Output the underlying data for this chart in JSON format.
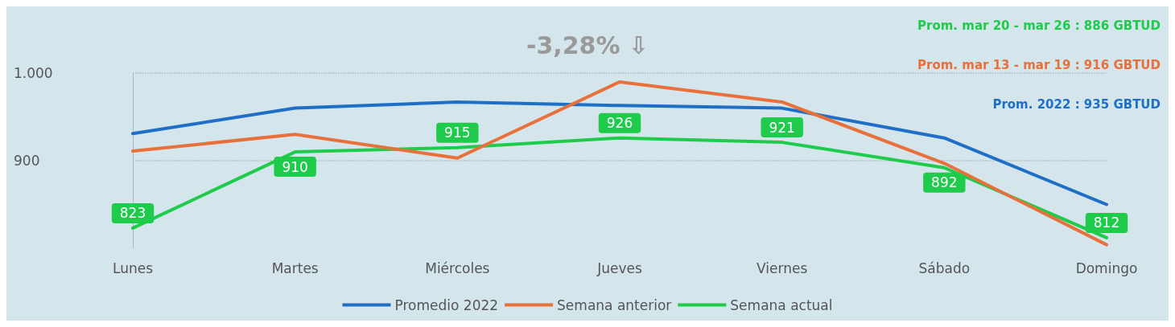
{
  "chart_data": {
    "type": "line",
    "title": "-3,28% ⇩",
    "categories": [
      "Lunes",
      "Martes",
      "Miércoles",
      "Jueves",
      "Viernes",
      "Sábado",
      "Domingo"
    ],
    "series": [
      {
        "name": "Promedio 2022",
        "color": "#1f6fc6",
        "values": [
          931,
          960,
          967,
          963,
          960,
          926,
          850
        ]
      },
      {
        "name": "Semana anterior",
        "color": "#e8703a",
        "values": [
          911,
          930,
          903,
          990,
          967,
          897,
          804
        ]
      },
      {
        "name": "Semana actual",
        "color": "#1ecb4a",
        "values": [
          823,
          910,
          915,
          926,
          921,
          892,
          812
        ],
        "value_labels": [
          "823",
          "910",
          "915",
          "926",
          "921",
          "892",
          "812"
        ]
      }
    ],
    "annotations": [
      "Prom. mar 20 - mar 26 : 886 GBTUD",
      "Prom. mar 13 - mar 19 : 916 GBTUD",
      "Prom. 2022 : 935 GBTUD"
    ],
    "ylim": [
      800,
      1000
    ],
    "yticks": [
      900,
      {
        "value": 1000,
        "label": "1.000"
      }
    ],
    "grid": "y",
    "legend": "bottom",
    "marker": "none",
    "line_style": "solid"
  }
}
